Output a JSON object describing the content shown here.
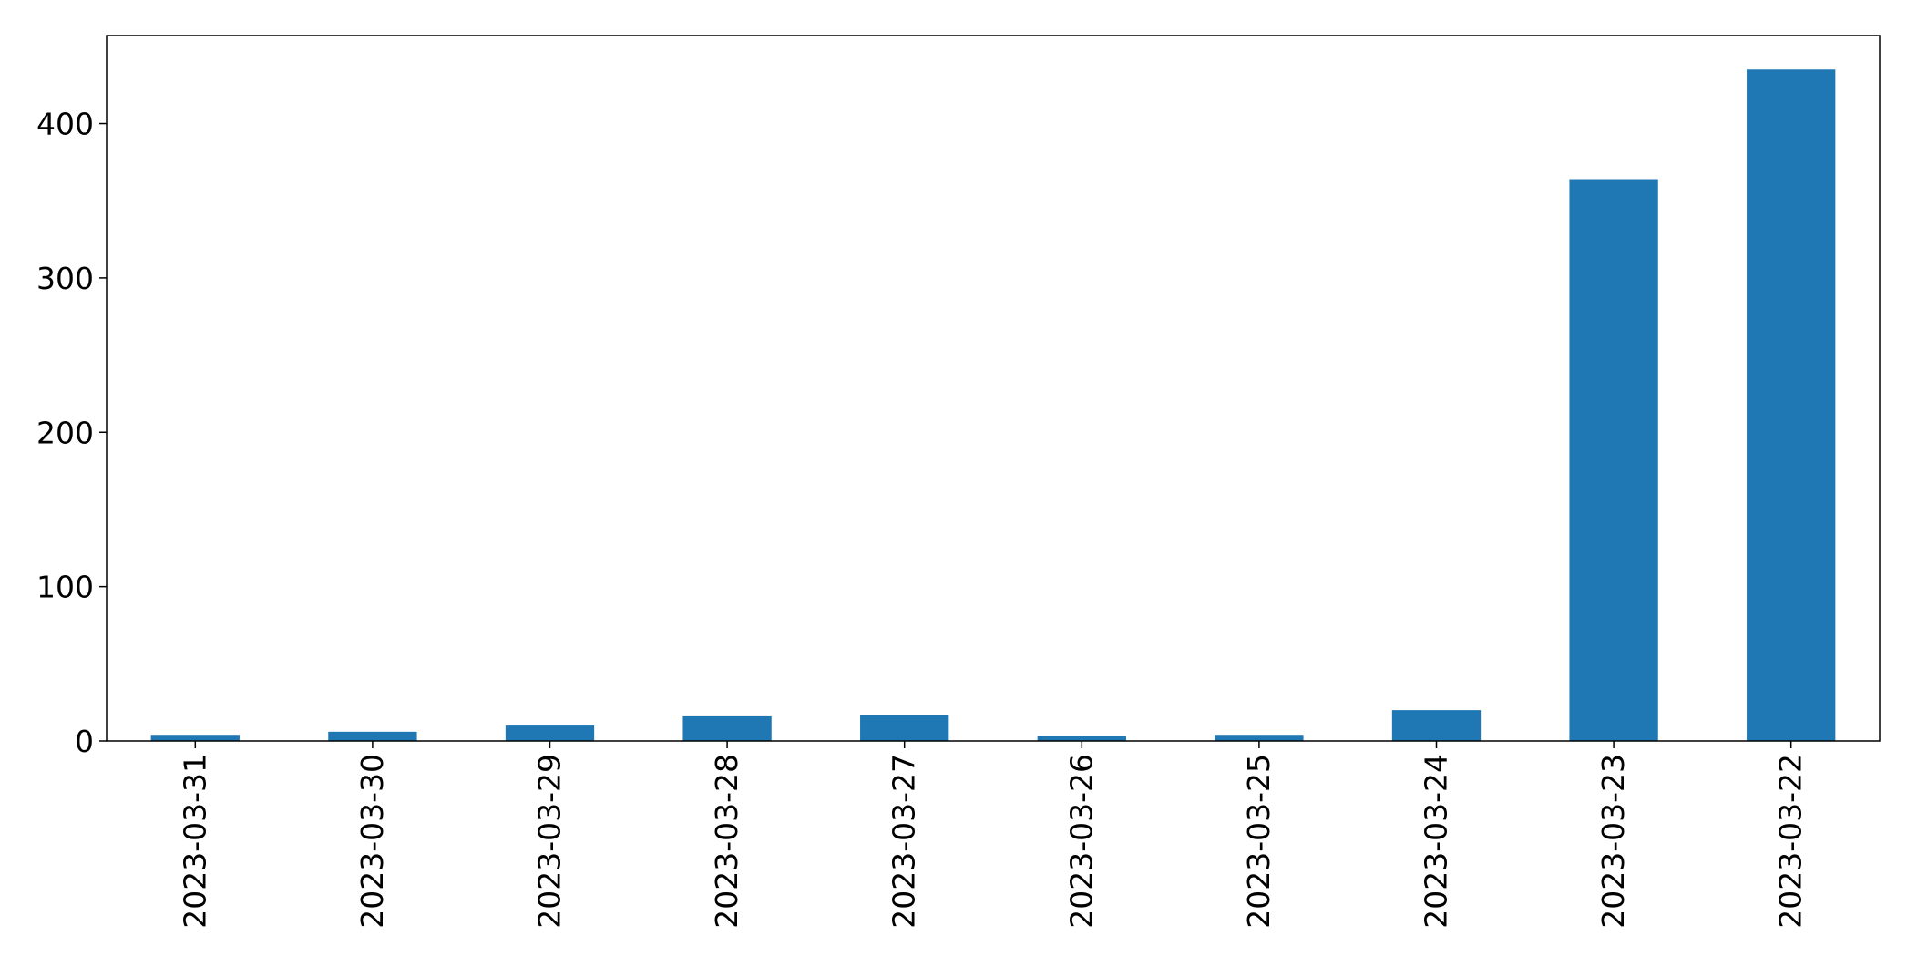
{
  "chart_data": {
    "type": "bar",
    "title": "",
    "xlabel": "",
    "ylabel": "",
    "categories": [
      "2023-03-31",
      "2023-03-30",
      "2023-03-29",
      "2023-03-28",
      "2023-03-27",
      "2023-03-26",
      "2023-03-25",
      "2023-03-24",
      "2023-03-23",
      "2023-03-22"
    ],
    "values": [
      4,
      6,
      10,
      16,
      17,
      3,
      4,
      20,
      364,
      435
    ],
    "ylim": [
      0,
      457
    ],
    "yticks": [
      0,
      100,
      200,
      300,
      400
    ],
    "grid": false,
    "legend": "none",
    "bar_color": "#1f77b4"
  }
}
